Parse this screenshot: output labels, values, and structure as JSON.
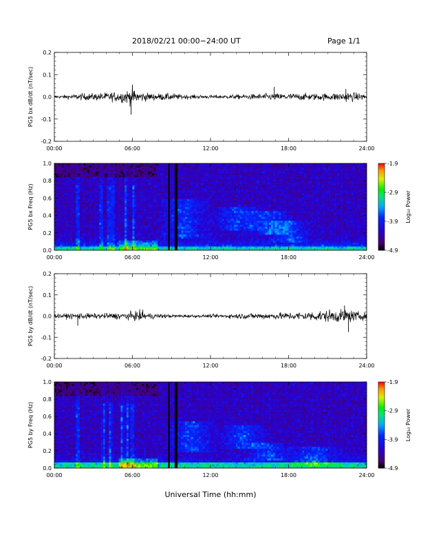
{
  "header": {
    "title": "2018/02/21  00:00−24:00 UT",
    "page": "Page 1/1"
  },
  "footer": {
    "xlabel": "Universal Time (hh:mm)"
  },
  "chart_data": [
    {
      "type": "line",
      "panel": "pc5-bx-waveform",
      "ylabel": "PG5 bx dB/dt (nT/sec)",
      "xlim": [
        0,
        24
      ],
      "ylim": [
        -0.2,
        0.2
      ],
      "xticks": [
        "00:00",
        "06:00",
        "12:00",
        "18:00",
        "24:00"
      ],
      "yticks": [
        "-0.2",
        "-0.1",
        "0.0",
        "0.1",
        "0.2"
      ],
      "grid": false,
      "series": [
        {
          "x": [
            0,
            0.5,
            1.5,
            2.2,
            3.0,
            4.0,
            5.0,
            5.6,
            6.0,
            6.5,
            7.5,
            8.5,
            9.2,
            9.5,
            10.5,
            12,
            13.5,
            15,
            16.5,
            17.0,
            18,
            19,
            20,
            21,
            22.0,
            22.5,
            23.3,
            24
          ],
          "envelope": [
            0.008,
            0.01,
            0.015,
            0.02,
            0.02,
            0.025,
            0.03,
            0.04,
            0.05,
            0.03,
            0.02,
            0.02,
            0.02,
            0.015,
            0.012,
            0.01,
            0.012,
            0.015,
            0.02,
            0.02,
            0.02,
            0.02,
            0.02,
            0.02,
            0.025,
            0.03,
            0.022,
            0.018
          ],
          "spikes": [
            [
              6.0,
              0.055
            ],
            [
              5.9,
              -0.08
            ],
            [
              16.9,
              0.045
            ],
            [
              22.4,
              0.035
            ]
          ]
        }
      ]
    },
    {
      "type": "heatmap",
      "panel": "pc5-bx-spectrogram",
      "ylabel": "PG5 bx Freq (Hz)",
      "xlim": [
        0,
        24
      ],
      "ylim": [
        0,
        1.0
      ],
      "xticks": [
        "00:00",
        "06:00",
        "12:00",
        "18:00",
        "24:00"
      ],
      "yticks": [
        "0.0",
        "0.2",
        "0.4",
        "0.6",
        "0.8",
        "1.0"
      ],
      "colorbar": {
        "label": "Log₁₀ Power",
        "range": [
          -4.9,
          -1.9
        ],
        "ticks": [
          "-1.9",
          "-2.9",
          "-3.9",
          "-4.9"
        ]
      },
      "data_gaps": [
        8.8,
        9.3,
        9.4
      ],
      "features": {
        "low_freq_band": {
          "freq_max": 0.05,
          "log_power": -2.9
        },
        "vertical_bursts": [
          1.8,
          3.6,
          4.2,
          4.5,
          5.5,
          6.1
        ],
        "rising_structures": [
          [
            10,
            0.25,
            0.6
          ],
          [
            14,
            0.35,
            0.5
          ],
          [
            16.5,
            0.3,
            0.45
          ],
          [
            18,
            0.2,
            0.35
          ]
        ],
        "background_log_power": -4.3
      }
    },
    {
      "type": "line",
      "panel": "pc5-by-waveform",
      "ylabel": "PG5 by dB/dt (nT/sec)",
      "xlim": [
        0,
        24
      ],
      "ylim": [
        -0.2,
        0.2
      ],
      "xticks": [
        "00:00",
        "06:00",
        "12:00",
        "18:00",
        "24:00"
      ],
      "yticks": [
        "-0.2",
        "-0.1",
        "0.0",
        "0.1",
        "0.2"
      ],
      "grid": false,
      "series": [
        {
          "x": [
            0,
            1,
            2,
            3,
            4,
            5,
            6,
            6.5,
            7,
            8,
            9,
            10,
            11,
            12,
            13,
            14,
            15,
            16,
            17,
            18,
            19,
            20,
            21,
            21.5,
            22,
            22.5,
            23,
            24
          ],
          "envelope": [
            0.012,
            0.015,
            0.02,
            0.015,
            0.018,
            0.02,
            0.025,
            0.03,
            0.02,
            0.015,
            0.01,
            0.01,
            0.008,
            0.01,
            0.012,
            0.015,
            0.018,
            0.02,
            0.02,
            0.022,
            0.025,
            0.03,
            0.035,
            0.04,
            0.035,
            0.045,
            0.03,
            0.02
          ],
          "spikes": [
            [
              22.6,
              -0.075
            ],
            [
              22.3,
              0.05
            ],
            [
              1.8,
              -0.045
            ],
            [
              6.8,
              0.03
            ]
          ]
        }
      ]
    },
    {
      "type": "heatmap",
      "panel": "pc5-by-spectrogram",
      "ylabel": "PG5 by Freq (Hz)",
      "xlim": [
        0,
        24
      ],
      "ylim": [
        0,
        1.0
      ],
      "xticks": [
        "00:00",
        "06:00",
        "12:00",
        "18:00",
        "24:00"
      ],
      "yticks": [
        "0.0",
        "0.2",
        "0.4",
        "0.6",
        "0.8",
        "1.0"
      ],
      "colorbar": {
        "label": "Log₁₀ Power",
        "range": [
          -4.9,
          -1.9
        ],
        "ticks": [
          "-1.9",
          "-2.9",
          "-3.9",
          "-4.9"
        ]
      },
      "data_gaps": [
        8.8,
        9.3,
        9.4
      ],
      "features": {
        "low_freq_band": {
          "freq_max": 0.06,
          "log_power": -2.8
        },
        "vertical_bursts": [
          1.8,
          3.8,
          4.3,
          5.2,
          5.6,
          6.0
        ],
        "rising_structures": [
          [
            10.5,
            0.3,
            0.55
          ],
          [
            14.5,
            0.35,
            0.5
          ],
          [
            16.5,
            0.2,
            0.3
          ],
          [
            20,
            0.15,
            0.25
          ]
        ],
        "background_log_power": -4.3
      }
    }
  ]
}
